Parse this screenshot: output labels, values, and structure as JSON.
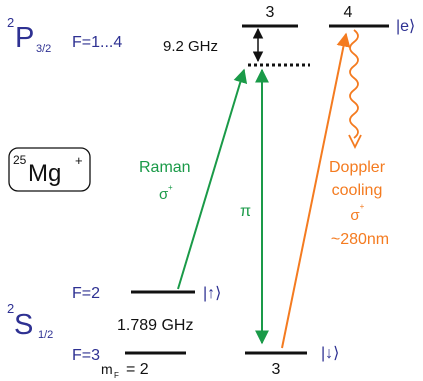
{
  "colors": {
    "blue": "#2e3192",
    "black": "#111111",
    "green": "#1a9a48",
    "orange": "#f47b20"
  },
  "upper_state": {
    "label_sup": "2",
    "label_main": "P",
    "label_sub": "3/2",
    "f_range": "F=1...4",
    "level_3_label": "3",
    "level_4_label": "4",
    "excited_ket": "|e⟩",
    "detuning": "9.2 GHz"
  },
  "ion": {
    "mass_number": "25",
    "symbol": "Mg",
    "charge": "+"
  },
  "lower_state": {
    "label_sup": "2",
    "label_main": "S",
    "label_sub": "1/2",
    "f2_label": "F=2",
    "f3_label": "F=3",
    "up_ket": "|↑⟩",
    "down_ket": "|↓⟩",
    "hyperfine_splitting": "1.789 GHz",
    "mf_prefix": "m",
    "mf_sub": "F",
    "mf_value": "= 2",
    "bottom_level_label": "3"
  },
  "raman": {
    "label": "Raman",
    "polarization": "σ",
    "polarization_sup": "+",
    "pi_label": "π"
  },
  "doppler": {
    "line1": "Doppler",
    "line2": "cooling",
    "polarization": "σ",
    "polarization_sup": "+",
    "wavelength": "~280nm"
  }
}
